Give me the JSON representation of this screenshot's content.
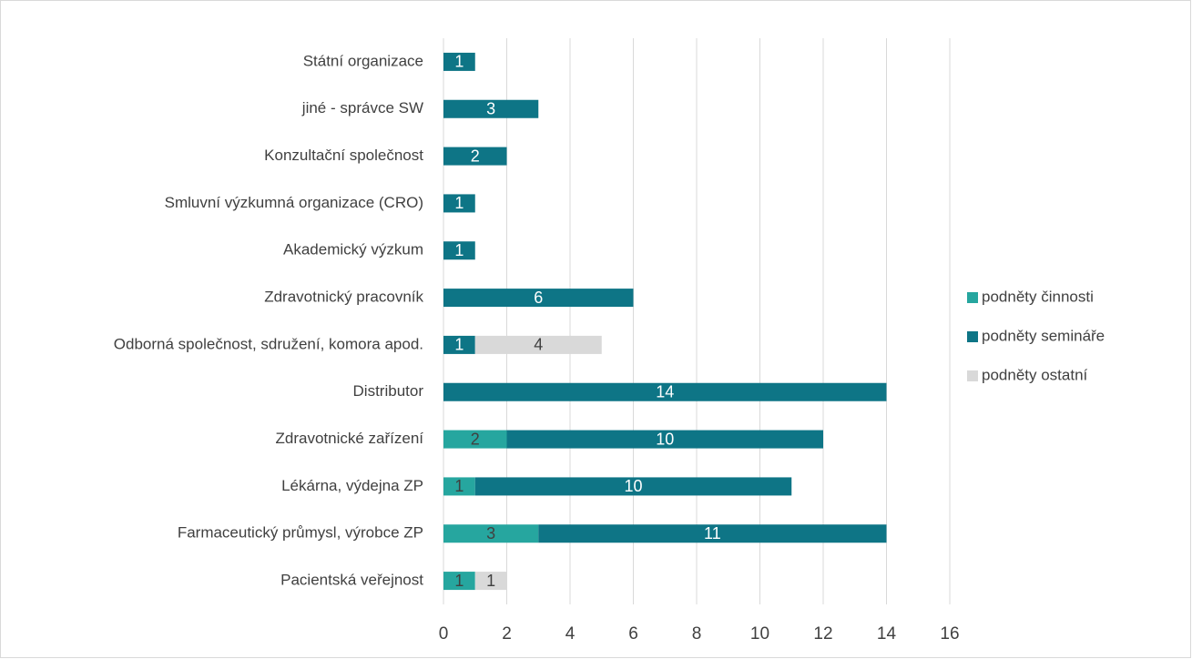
{
  "chart_data": {
    "type": "bar",
    "orientation": "horizontal",
    "stacked": true,
    "categories": [
      "Státní organizace",
      "jiné - správce SW",
      "Konzultační společnost",
      "Smluvní výzkumná organizace (CRO)",
      "Akademický výzkum",
      "Zdravotnický pracovník",
      "Odborná společnost, sdružení, komora apod.",
      "Distributor",
      "Zdravotnické zařízení",
      "Lékárna, výdejna ZP",
      "Farmaceutický průmysl, výrobce ZP",
      "Pacientská veřejnost"
    ],
    "series": [
      {
        "name": "podněty činnosti",
        "color": "#26a69f",
        "values": [
          null,
          null,
          null,
          null,
          null,
          null,
          null,
          null,
          2,
          1,
          3,
          1
        ]
      },
      {
        "name": "podněty semináře",
        "color": "#0e7586",
        "values": [
          1,
          3,
          2,
          1,
          1,
          6,
          1,
          14,
          10,
          10,
          11,
          null
        ]
      },
      {
        "name": "podněty ostatní",
        "color": "#d9d9d9",
        "values": [
          null,
          null,
          null,
          null,
          null,
          null,
          4,
          null,
          null,
          null,
          null,
          1
        ]
      }
    ],
    "xlim": [
      0,
      16
    ],
    "xticks": [
      0,
      2,
      4,
      6,
      8,
      10,
      12,
      14,
      16
    ],
    "grid": true,
    "legend": "right"
  }
}
